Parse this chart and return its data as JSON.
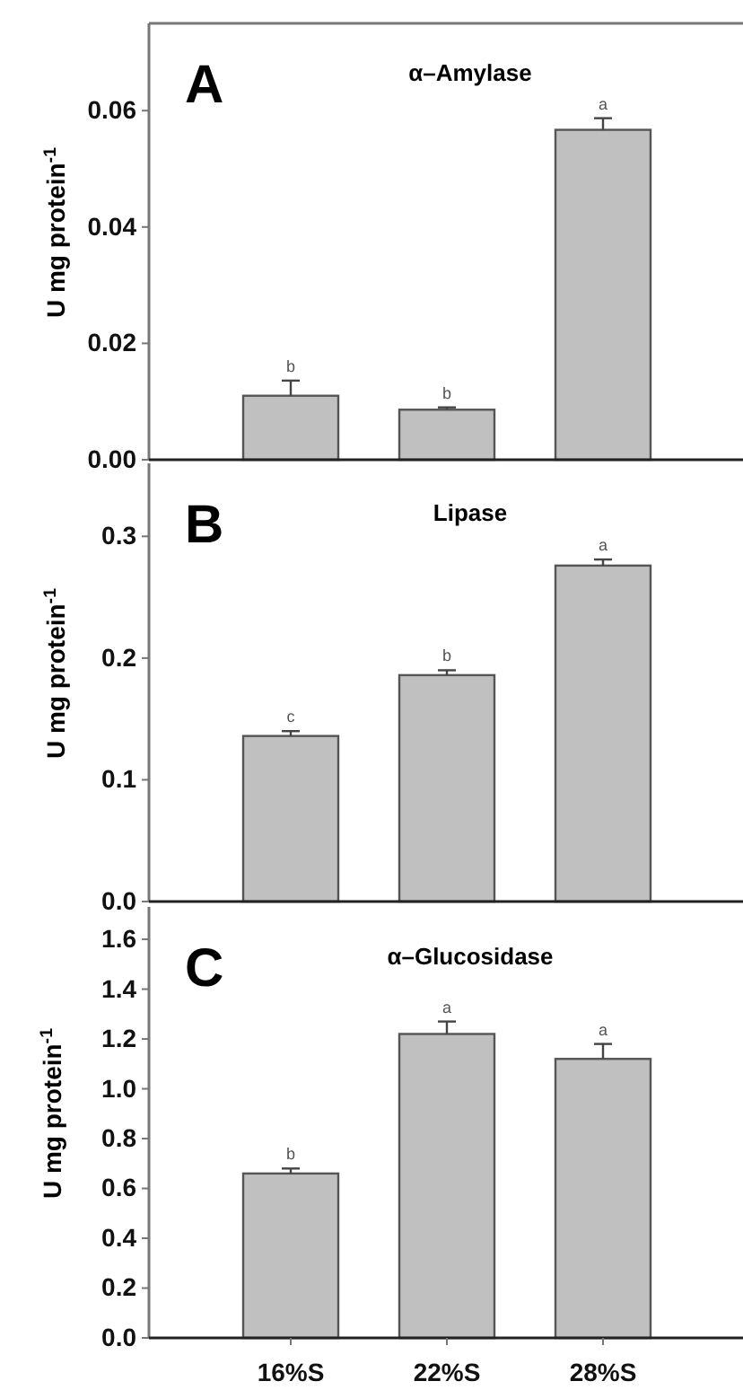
{
  "chart_data": [
    {
      "type": "bar",
      "title": "α–Amylase",
      "ylabel": "U mg protein$^{-1}$",
      "categories": [
        "16%S",
        "22%S",
        "28%S"
      ],
      "values": [
        0.011,
        0.0086,
        0.0567
      ],
      "errors": [
        [
          0.011,
          0.0136
        ],
        [
          0.0086,
          0.009
        ],
        [
          0.0567,
          0.0587
        ]
      ],
      "color": "#c0c0c0",
      "ylim": [
        0,
        0.075
      ],
      "yticks": [
        {
          "value": 0,
          "label": "0.00"
        },
        {
          "value": 0.02,
          "label": "0.02"
        },
        {
          "value": 0.04,
          "label": "0.04"
        },
        {
          "value": 0.06,
          "label": "0.06"
        }
      ],
      "tick_labels": "y",
      "grid": false,
      "annotations": [
        "A",
        {
          "text": "b",
          "x": "16%S",
          "y": 0.0136
        },
        {
          "text": "b",
          "x": "22%S",
          "y": 0.009
        },
        {
          "text": "a",
          "x": "28%S",
          "y": 0.0587
        }
      ]
    },
    {
      "type": "bar",
      "title": "Lipase",
      "ylabel": "U mg protein$^{-1}$",
      "categories": [
        "16%S",
        "22%S",
        "28%S"
      ],
      "values": [
        0.136,
        0.186,
        0.276
      ],
      "errors": [
        [
          0.136,
          0.14
        ],
        [
          0.186,
          0.19
        ],
        [
          0.276,
          0.281
        ]
      ],
      "color": "#c0c0c0",
      "ylim": [
        0,
        0.36
      ],
      "yticks": [
        {
          "value": 0,
          "label": "0.0"
        },
        0.1,
        0.2,
        0.3
      ],
      "tick_labels": "y",
      "grid": false,
      "annotations": [
        "B",
        {
          "text": "c",
          "x": "16%S",
          "y": 0.14
        },
        {
          "text": "b",
          "x": "22%S",
          "y": 0.19
        },
        {
          "text": "a",
          "x": "28%S",
          "y": 0.281
        }
      ]
    },
    {
      "type": "bar",
      "title": "α–Glucosidase",
      "ylabel": "U mg protein$^{-1}$",
      "categories": [
        "16%S",
        "22%S",
        "28%S"
      ],
      "values": [
        0.66,
        1.22,
        1.12
      ],
      "errors": [
        [
          0.66,
          0.68
        ],
        [
          1.22,
          1.27
        ],
        [
          1.12,
          1.18
        ]
      ],
      "color": "#c0c0c0",
      "ylim": [
        0,
        1.73
      ],
      "yticks": [
        {
          "value": 0,
          "label": "0.0"
        },
        0.2,
        0.4,
        0.6,
        0.8,
        {
          "value": 1,
          "label": "1.0"
        },
        1.2,
        1.4,
        1.6
      ],
      "grid": false,
      "annotations": [
        "C",
        {
          "text": "b",
          "x": "16%S",
          "y": 0.68
        },
        {
          "text": "a",
          "x": "22%S",
          "y": 1.27
        },
        {
          "text": "a",
          "x": "28%S",
          "y": 1.18
        }
      ]
    }
  ]
}
